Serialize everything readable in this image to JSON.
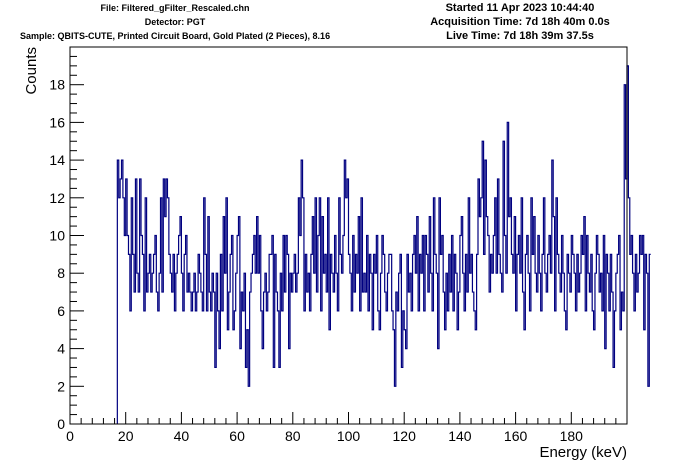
{
  "header": {
    "file": "File: Filtered_gFilter_Rescaled.chn",
    "detector": "Detector: PGT",
    "sample": "Sample: QBITS-CUTE, Printed Circuit Board, Gold Plated (2 Pieces), 8.16",
    "started": "Started 11 Apr 2023 10:44:40",
    "acquisition": "Acquisition Time: 7d 18h 40m 0.0s",
    "live": "Live Time: 7d 18h 39m 37.5s"
  },
  "colors": {
    "series": "#000080",
    "frame": "#000000",
    "background": "#ffffff"
  },
  "chart_data": {
    "type": "line",
    "style": "step-histogram",
    "title": "",
    "xlabel": "Energy (keV)",
    "ylabel": "Counts",
    "xlim": [
      0,
      200
    ],
    "ylim": [
      0,
      20
    ],
    "xticks": [
      0,
      20,
      40,
      60,
      80,
      100,
      120,
      140,
      160,
      180
    ],
    "yticks": [
      0,
      2,
      4,
      6,
      8,
      10,
      12,
      14,
      16,
      18
    ],
    "grid": false,
    "legend": "none",
    "bin_width": 0.5,
    "x_start": 17.0,
    "series": [
      {
        "values": [
          14,
          12,
          13,
          14,
          12,
          10,
          13,
          10,
          9,
          6,
          12,
          9,
          7,
          13,
          8,
          7,
          13,
          10,
          9,
          6,
          12,
          7,
          8,
          9,
          7,
          8,
          9,
          10,
          7,
          6,
          8,
          12,
          7,
          13,
          11,
          13,
          12,
          9,
          8,
          7,
          9,
          6,
          8,
          9,
          10,
          11,
          8,
          6,
          9,
          10,
          7,
          8,
          7,
          6,
          7,
          8,
          6,
          7,
          9,
          8,
          7,
          6,
          12,
          9,
          6,
          11,
          7,
          6,
          8,
          7,
          3,
          8,
          6,
          4,
          9,
          6,
          11,
          8,
          12,
          5,
          7,
          9,
          10,
          5,
          6,
          8,
          10,
          11,
          4,
          7,
          6,
          8,
          3,
          5,
          2,
          7,
          8,
          9,
          10,
          8,
          11,
          8,
          10,
          6,
          4,
          7,
          8,
          6,
          7,
          9,
          9,
          10,
          3,
          9,
          7,
          6,
          3,
          8,
          6,
          10,
          7,
          10,
          9,
          4,
          8,
          7,
          8,
          9,
          7,
          8,
          12,
          10,
          14,
          12,
          6,
          9,
          7,
          8,
          6,
          9,
          11,
          8,
          12,
          7,
          10,
          12,
          6,
          11,
          8,
          9,
          7,
          12,
          5,
          9,
          8,
          7,
          10,
          8,
          6,
          12,
          9,
          8,
          10,
          14,
          12,
          13,
          9,
          8,
          6,
          10,
          7,
          9,
          8,
          11,
          6,
          12,
          7,
          8,
          7,
          10,
          6,
          9,
          8,
          5,
          9,
          8,
          10,
          6,
          5,
          8,
          10,
          9,
          7,
          6,
          8,
          9,
          9,
          6,
          5,
          2,
          7,
          6,
          8,
          9,
          3,
          6,
          5,
          4,
          9,
          7,
          8,
          6,
          9,
          10,
          8,
          11,
          6,
          9,
          8,
          10,
          6,
          10,
          9,
          7,
          11,
          8,
          6,
          12,
          9,
          8,
          4,
          12,
          9,
          10,
          7,
          5,
          8,
          6,
          9,
          7,
          10,
          6,
          9,
          8,
          5,
          7,
          10,
          11,
          8,
          6,
          9,
          7,
          12,
          8,
          9,
          7,
          6,
          5,
          9,
          13,
          11,
          12,
          15,
          9,
          14,
          11,
          10,
          7,
          9,
          8,
          10,
          12,
          8,
          13,
          9,
          8,
          7,
          15,
          10,
          8,
          16,
          11,
          12,
          9,
          8,
          11,
          6,
          9,
          10,
          8,
          12,
          7,
          5,
          9,
          10,
          8,
          6,
          12,
          9,
          11,
          8,
          7,
          10,
          8,
          6,
          9,
          12,
          8,
          7,
          9,
          10,
          8,
          14,
          11,
          6,
          12,
          9,
          8,
          7,
          10,
          8,
          6,
          5,
          9,
          8,
          7,
          10,
          9,
          8,
          6,
          9,
          7,
          8,
          10,
          9,
          11,
          6,
          10,
          8,
          7,
          9,
          6,
          5,
          8,
          10,
          9,
          7,
          8,
          6,
          10,
          4,
          9,
          8,
          6,
          9,
          7,
          3,
          6,
          8,
          9,
          10,
          5,
          7,
          6,
          18,
          13,
          19,
          12,
          9,
          10,
          8,
          6,
          9,
          7,
          8,
          10,
          9,
          10,
          5,
          9,
          8,
          2,
          9
        ]
      }
    ]
  }
}
